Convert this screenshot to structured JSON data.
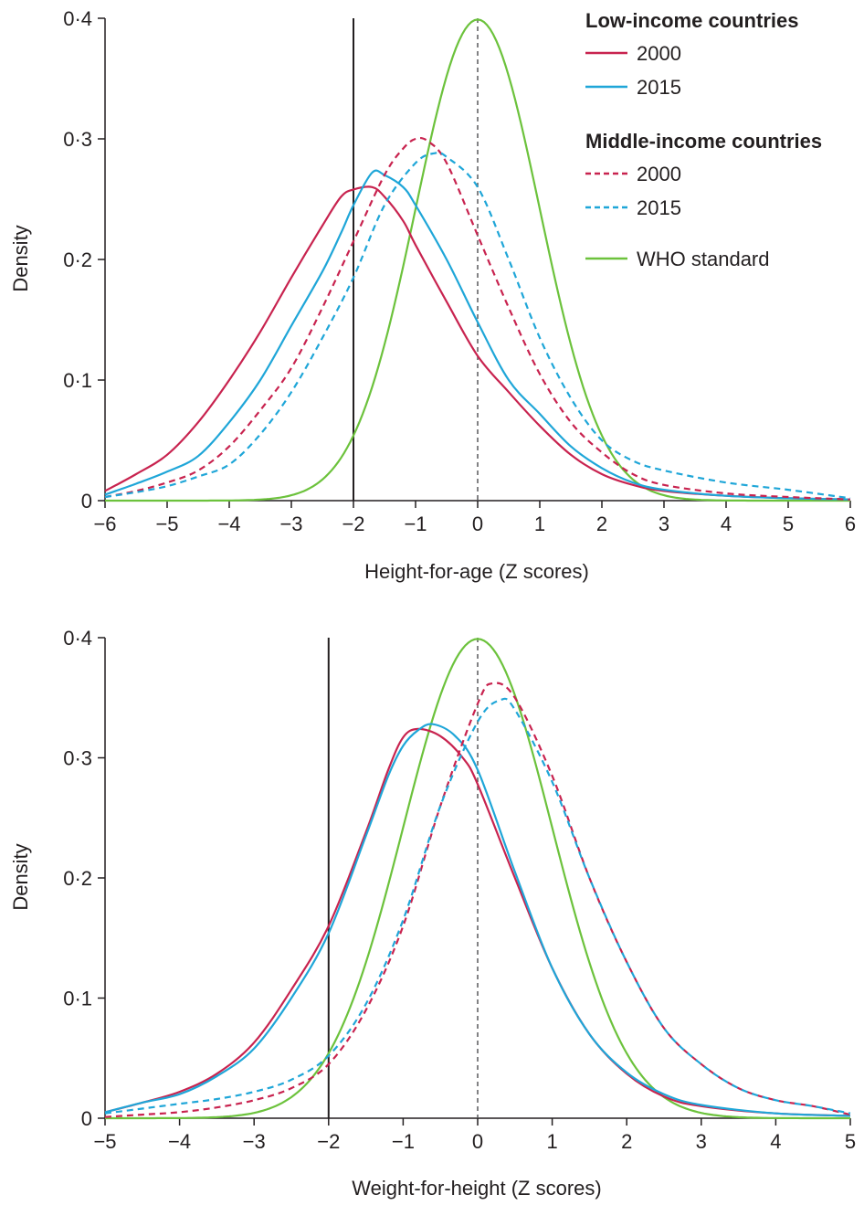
{
  "colors": {
    "y2000": "#c8234f",
    "y2015": "#1fa6d8",
    "who": "#6cc23c",
    "axis": "#231f20",
    "ref": "#58595b"
  },
  "legend": {
    "low_heading": "Low-income countries",
    "low_2000": "2000",
    "low_2015": "2015",
    "mid_heading": "Middle-income countries",
    "mid_2000": "2000",
    "mid_2015": "2015",
    "who": "WHO standard"
  },
  "chart_data": [
    {
      "type": "line",
      "xlabel": "Height-for-age (Z scores)",
      "ylabel": "Density",
      "xlim": [
        -6,
        6
      ],
      "ylim": [
        0,
        0.4
      ],
      "xticks": [
        "−6",
        "−5",
        "−4",
        "−3",
        "−2",
        "−1",
        "0",
        "1",
        "2",
        "3",
        "4",
        "5",
        "6"
      ],
      "yticks": [
        "0",
        "0·1",
        "0·2",
        "0·3",
        "0·4"
      ],
      "cutoff_line": -2,
      "reference_line": 0,
      "series": [
        {
          "key": "low2000",
          "income": "low",
          "year": "2000",
          "dashed": false,
          "x": [
            -6,
            -5.5,
            -5,
            -4.5,
            -4,
            -3.5,
            -3,
            -2.5,
            -2.2,
            -2,
            -1.7,
            -1.5,
            -1.2,
            -1,
            -0.5,
            0,
            0.5,
            1,
            1.5,
            2,
            2.5,
            3,
            4,
            5,
            6
          ],
          "y": [
            0.008,
            0.022,
            0.038,
            0.065,
            0.1,
            0.14,
            0.185,
            0.228,
            0.252,
            0.258,
            0.26,
            0.252,
            0.232,
            0.212,
            0.165,
            0.12,
            0.09,
            0.062,
            0.038,
            0.022,
            0.013,
            0.008,
            0.004,
            0.002,
            0.001
          ]
        },
        {
          "key": "low2015",
          "income": "low",
          "year": "2015",
          "dashed": false,
          "x": [
            -6,
            -5.5,
            -5,
            -4.5,
            -4,
            -3.5,
            -3,
            -2.5,
            -2.2,
            -2,
            -1.7,
            -1.5,
            -1.2,
            -1,
            -0.5,
            0,
            0.5,
            1,
            1.5,
            2,
            2.5,
            3,
            4,
            5,
            6
          ],
          "y": [
            0.005,
            0.014,
            0.024,
            0.037,
            0.065,
            0.1,
            0.145,
            0.19,
            0.222,
            0.245,
            0.272,
            0.27,
            0.26,
            0.245,
            0.2,
            0.148,
            0.1,
            0.072,
            0.045,
            0.027,
            0.015,
            0.009,
            0.004,
            0.002,
            0.001
          ]
        },
        {
          "key": "mid2000",
          "income": "middle",
          "year": "2000",
          "dashed": false,
          "x": [
            -6,
            -5.5,
            -5,
            -4.5,
            -4,
            -3.5,
            -3,
            -2.5,
            -2,
            -1.5,
            -1.2,
            -1,
            -0.8,
            -0.5,
            0,
            0.5,
            1,
            1.5,
            2,
            2.5,
            3,
            4,
            5,
            6
          ],
          "y": [
            0.003,
            0.008,
            0.015,
            0.025,
            0.045,
            0.075,
            0.11,
            0.16,
            0.215,
            0.27,
            0.292,
            0.3,
            0.298,
            0.28,
            0.22,
            0.16,
            0.105,
            0.065,
            0.04,
            0.022,
            0.013,
            0.006,
            0.003,
            0.001
          ]
        },
        {
          "key": "mid2015",
          "income": "middle",
          "year": "2015",
          "dashed": false,
          "x": [
            -6,
            -5.5,
            -5,
            -4.5,
            -4,
            -3.5,
            -3,
            -2.5,
            -2,
            -1.5,
            -1,
            -0.7,
            -0.5,
            0,
            0.5,
            1,
            1.5,
            2,
            2.5,
            3,
            4,
            5,
            6
          ],
          "y": [
            0.003,
            0.007,
            0.012,
            0.02,
            0.03,
            0.055,
            0.09,
            0.135,
            0.185,
            0.245,
            0.28,
            0.288,
            0.285,
            0.26,
            0.2,
            0.135,
            0.085,
            0.05,
            0.033,
            0.025,
            0.015,
            0.009,
            0.002
          ]
        }
      ]
    },
    {
      "type": "line",
      "xlabel": "Weight-for-height (Z scores)",
      "ylabel": "Density",
      "xlim": [
        -5,
        5
      ],
      "ylim": [
        0,
        0.4
      ],
      "xticks": [
        "−5",
        "−4",
        "−3",
        "−2",
        "−1",
        "0",
        "1",
        "2",
        "3",
        "4",
        "5"
      ],
      "yticks": [
        "0",
        "0·1",
        "0·2",
        "0·3",
        "0·4"
      ],
      "cutoff_line": -2,
      "reference_line": 0,
      "series": [
        {
          "key": "low2000",
          "income": "low",
          "year": "2000",
          "dashed": false,
          "x": [
            -5,
            -4.5,
            -4,
            -3.5,
            -3,
            -2.5,
            -2,
            -1.5,
            -1.2,
            -1,
            -0.8,
            -0.5,
            -0.2,
            0,
            0.5,
            1,
            1.5,
            2,
            2.5,
            3,
            4,
            5
          ],
          "y": [
            0.005,
            0.013,
            0.022,
            0.037,
            0.063,
            0.107,
            0.16,
            0.238,
            0.29,
            0.317,
            0.324,
            0.318,
            0.3,
            0.278,
            0.2,
            0.125,
            0.07,
            0.037,
            0.018,
            0.01,
            0.004,
            0.002
          ]
        },
        {
          "key": "low2015",
          "income": "low",
          "year": "2015",
          "dashed": false,
          "x": [
            -5,
            -4.5,
            -4,
            -3.5,
            -3,
            -2.5,
            -2,
            -1.5,
            -1.2,
            -1,
            -0.8,
            -0.6,
            -0.3,
            0,
            0.5,
            1,
            1.5,
            2,
            2.5,
            3,
            4,
            5
          ],
          "y": [
            0.005,
            0.013,
            0.02,
            0.035,
            0.058,
            0.1,
            0.154,
            0.235,
            0.285,
            0.31,
            0.323,
            0.328,
            0.318,
            0.29,
            0.205,
            0.125,
            0.07,
            0.038,
            0.02,
            0.011,
            0.004,
            0.002
          ]
        },
        {
          "key": "mid2000",
          "income": "middle",
          "year": "2000",
          "dashed": false,
          "x": [
            -5,
            -4.5,
            -4,
            -3.5,
            -3,
            -2.5,
            -2,
            -1.5,
            -1,
            -0.5,
            0,
            0.2,
            0.5,
            1,
            1.5,
            2,
            2.5,
            3,
            3.5,
            4,
            4.5,
            5
          ],
          "y": [
            0.001,
            0.003,
            0.005,
            0.009,
            0.015,
            0.025,
            0.045,
            0.09,
            0.16,
            0.26,
            0.345,
            0.362,
            0.35,
            0.285,
            0.2,
            0.13,
            0.075,
            0.045,
            0.025,
            0.015,
            0.01,
            0.003
          ]
        },
        {
          "key": "mid2015",
          "income": "middle",
          "year": "2015",
          "dashed": false,
          "x": [
            -5,
            -4.5,
            -4,
            -3.5,
            -3,
            -2.5,
            -2,
            -1.5,
            -1,
            -0.5,
            0,
            0.3,
            0.5,
            1,
            1.5,
            2,
            2.5,
            3,
            3.5,
            4,
            4.5,
            5
          ],
          "y": [
            0.004,
            0.008,
            0.012,
            0.016,
            0.022,
            0.032,
            0.052,
            0.095,
            0.165,
            0.26,
            0.33,
            0.348,
            0.34,
            0.28,
            0.2,
            0.13,
            0.075,
            0.045,
            0.025,
            0.015,
            0.01,
            0.004
          ]
        }
      ]
    }
  ]
}
